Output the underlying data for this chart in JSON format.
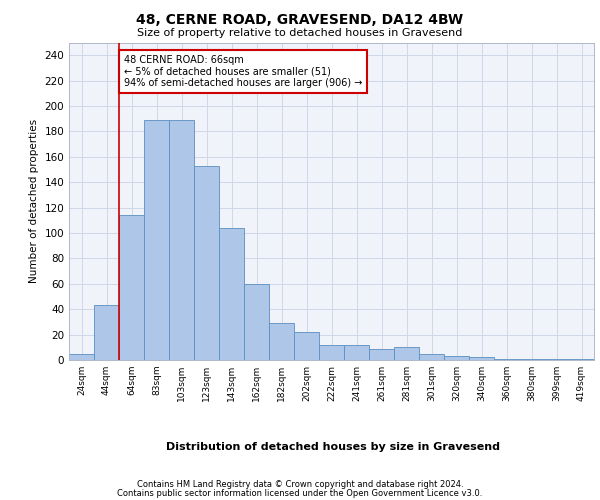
{
  "title1": "48, CERNE ROAD, GRAVESEND, DA12 4BW",
  "title2": "Size of property relative to detached houses in Gravesend",
  "xlabel": "Distribution of detached houses by size in Gravesend",
  "ylabel": "Number of detached properties",
  "categories": [
    "24sqm",
    "44sqm",
    "64sqm",
    "83sqm",
    "103sqm",
    "123sqm",
    "143sqm",
    "162sqm",
    "182sqm",
    "202sqm",
    "222sqm",
    "241sqm",
    "261sqm",
    "281sqm",
    "301sqm",
    "320sqm",
    "340sqm",
    "360sqm",
    "380sqm",
    "399sqm",
    "419sqm"
  ],
  "values": [
    5,
    43,
    114,
    189,
    189,
    153,
    104,
    60,
    29,
    22,
    12,
    12,
    9,
    10,
    5,
    3,
    2,
    1,
    1,
    1,
    1
  ],
  "bar_color": "#aec6e8",
  "bar_edge_color": "#5a8fc2",
  "grid_color": "#d0d8e8",
  "background_color": "#f0f4fa",
  "vline_x": 1.5,
  "vline_color": "#cc0000",
  "annotation_text": "48 CERNE ROAD: 66sqm\n← 5% of detached houses are smaller (51)\n94% of semi-detached houses are larger (906) →",
  "annotation_box_color": "#ffffff",
  "annotation_box_edge": "#cc0000",
  "ylim": [
    0,
    250
  ],
  "yticks": [
    0,
    20,
    40,
    60,
    80,
    100,
    120,
    140,
    160,
    180,
    200,
    220,
    240
  ],
  "footer1": "Contains HM Land Registry data © Crown copyright and database right 2024.",
  "footer2": "Contains public sector information licensed under the Open Government Licence v3.0."
}
